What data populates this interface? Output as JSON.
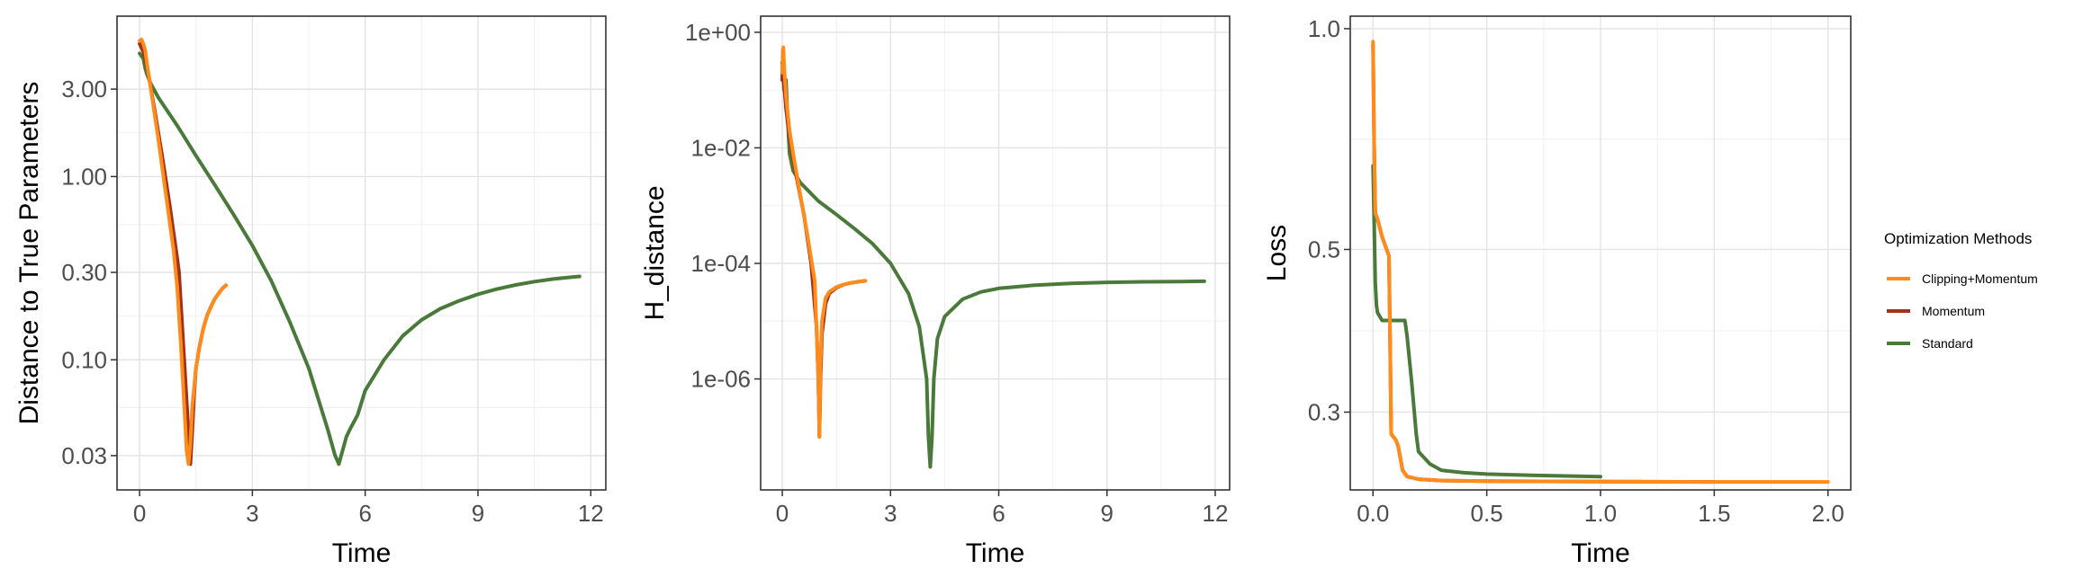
{
  "legend": {
    "title": "Optimization Methods",
    "placement": "right",
    "entries": [
      {
        "label": "Clipping+Momentum",
        "color": "#FF8C1A"
      },
      {
        "label": "Momentum",
        "color": "#A0311C"
      },
      {
        "label": "Standard",
        "color": "#4A7A3A"
      }
    ]
  },
  "chart_data": [
    {
      "type": "line",
      "xlabel": "Time",
      "ylabel": "Distance to True Parameters",
      "y_scale": "log10",
      "xlim": [
        -0.6,
        12.4
      ],
      "ylim": [
        0.0195,
        7.5
      ],
      "x_ticks": [
        0,
        3,
        6,
        9,
        12
      ],
      "x_tick_labels": [
        "0",
        "3",
        "6",
        "9",
        "12"
      ],
      "y_ticks": [
        0.03,
        0.1,
        0.3,
        1,
        3
      ],
      "y_tick_labels": [
        "0.03",
        "0.10",
        "0.30",
        "1.00",
        "3.00"
      ],
      "grid": true,
      "series": [
        {
          "name": "Clipping+Momentum",
          "color": "#FF8C1A",
          "x": [
            0.0,
            0.05,
            0.1,
            0.15,
            0.2,
            0.3,
            0.5,
            0.7,
            0.9,
            1.0,
            1.1,
            1.2,
            1.25,
            1.3,
            1.35,
            1.4,
            1.5,
            1.6,
            1.7,
            1.8,
            1.9,
            2.0,
            2.1,
            2.2,
            2.3
          ],
          "y": [
            5.5,
            5.6,
            5.3,
            4.9,
            4.1,
            3.0,
            1.6,
            0.8,
            0.4,
            0.25,
            0.12,
            0.05,
            0.032,
            0.027,
            0.035,
            0.055,
            0.09,
            0.12,
            0.15,
            0.175,
            0.195,
            0.215,
            0.23,
            0.245,
            0.255
          ]
        },
        {
          "name": "Momentum",
          "color": "#A0311C",
          "x": [
            0.0,
            0.1,
            0.2,
            0.4,
            0.6,
            0.8,
            1.0,
            1.05,
            1.1,
            1.2,
            1.3,
            1.35,
            1.4,
            1.45,
            1.5,
            1.6,
            1.7,
            1.8,
            1.9,
            2.0,
            2.1,
            2.2,
            2.3
          ],
          "y": [
            5.3,
            4.8,
            4.0,
            2.3,
            1.3,
            0.7,
            0.36,
            0.3,
            0.2,
            0.09,
            0.04,
            0.027,
            0.04,
            0.065,
            0.09,
            0.12,
            0.15,
            0.175,
            0.195,
            0.215,
            0.23,
            0.245,
            0.255
          ]
        },
        {
          "name": "Standard",
          "color": "#4A7A3A",
          "x": [
            0.0,
            0.1,
            0.15,
            0.2,
            0.3,
            0.5,
            1.0,
            1.5,
            2.0,
            2.5,
            3.0,
            3.5,
            4.0,
            4.5,
            5.0,
            5.2,
            5.3,
            5.4,
            5.5,
            5.6,
            5.8,
            6.0,
            6.5,
            7.0,
            7.5,
            8.0,
            8.5,
            9.0,
            9.5,
            10.0,
            10.5,
            11.0,
            11.5,
            11.7
          ],
          "y": [
            4.7,
            4.4,
            3.9,
            3.6,
            3.2,
            2.7,
            1.9,
            1.3,
            0.9,
            0.62,
            0.42,
            0.27,
            0.16,
            0.09,
            0.042,
            0.03,
            0.027,
            0.032,
            0.038,
            0.042,
            0.05,
            0.068,
            0.1,
            0.135,
            0.165,
            0.19,
            0.21,
            0.228,
            0.243,
            0.256,
            0.267,
            0.276,
            0.283,
            0.285
          ]
        }
      ]
    },
    {
      "type": "line",
      "xlabel": "Time",
      "ylabel": "H_distance",
      "y_scale": "log10",
      "xlim": [
        -0.6,
        12.4
      ],
      "ylim": [
        1.2e-08,
        1.9
      ],
      "x_ticks": [
        0,
        3,
        6,
        9,
        12
      ],
      "x_tick_labels": [
        "0",
        "3",
        "6",
        "9",
        "12"
      ],
      "y_ticks": [
        1e-06,
        0.0001,
        0.01,
        1
      ],
      "y_tick_labels": [
        "1e-06",
        "1e-04",
        "1e-02",
        "1e+00"
      ],
      "grid": true,
      "series": [
        {
          "name": "Clipping+Momentum",
          "color": "#FF8C1A",
          "x": [
            0.0,
            0.03,
            0.06,
            0.1,
            0.2,
            0.3,
            0.5,
            0.7,
            0.9,
            1.0,
            1.03,
            1.06,
            1.1,
            1.2,
            1.3,
            1.5,
            1.7,
            1.9,
            2.1,
            2.3
          ],
          "y": [
            0.2,
            0.55,
            0.2,
            0.08,
            0.02,
            0.008,
            0.0015,
            0.0003,
            5e-05,
            1e-06,
            1e-07,
            2e-06,
            1e-05,
            2.5e-05,
            3.2e-05,
            3.9e-05,
            4.3e-05,
            4.6e-05,
            4.8e-05,
            5e-05
          ]
        },
        {
          "name": "Momentum",
          "color": "#A0311C",
          "x": [
            0.0,
            0.02,
            0.05,
            0.1,
            0.2,
            0.4,
            0.6,
            0.8,
            0.95,
            1.0,
            1.03,
            1.06,
            1.1,
            1.2,
            1.3,
            1.5,
            1.7,
            1.9,
            2.1,
            2.3
          ],
          "y": [
            0.15,
            0.5,
            0.12,
            0.05,
            0.015,
            0.003,
            0.0007,
            0.0001,
            8e-06,
            1e-06,
            1e-07,
            1e-06,
            6e-06,
            2e-05,
            3e-05,
            3.8e-05,
            4.3e-05,
            4.6e-05,
            4.8e-05,
            5e-05
          ]
        },
        {
          "name": "Standard",
          "color": "#4A7A3A",
          "x": [
            0.0,
            0.05,
            0.1,
            0.15,
            0.2,
            0.3,
            0.5,
            1.0,
            1.5,
            2.0,
            2.5,
            3.0,
            3.5,
            3.8,
            4.0,
            4.05,
            4.1,
            4.15,
            4.2,
            4.3,
            4.5,
            5.0,
            5.5,
            6.0,
            7.0,
            8.0,
            9.0,
            10.0,
            11.0,
            11.7
          ],
          "y": [
            0.3,
            0.1,
            0.15,
            0.03,
            0.008,
            0.004,
            0.0025,
            0.0012,
            0.0007,
            0.0004,
            0.00022,
            0.0001,
            3e-05,
            8e-06,
            1e-06,
            1e-07,
            3e-08,
            1e-07,
            1e-06,
            5e-06,
            1.2e-05,
            2.4e-05,
            3.2e-05,
            3.7e-05,
            4.2e-05,
            4.5e-05,
            4.7e-05,
            4.8e-05,
            4.85e-05,
            4.9e-05
          ]
        }
      ]
    },
    {
      "type": "line",
      "xlabel": "Time",
      "ylabel": "Loss",
      "y_scale": "log10",
      "xlim": [
        -0.1,
        2.1
      ],
      "ylim": [
        0.235,
        1.04
      ],
      "x_ticks": [
        0,
        0.5,
        1,
        1.5,
        2
      ],
      "x_tick_labels": [
        "0.0",
        "0.5",
        "1.0",
        "1.5",
        "2.0"
      ],
      "y_ticks": [
        0.3,
        0.5,
        1
      ],
      "y_tick_labels": [
        "0.3",
        "0.5",
        "1.0"
      ],
      "grid": true,
      "series": [
        {
          "name": "Clipping+Momentum",
          "color": "#FF8C1A",
          "x": [
            0.0,
            0.005,
            0.01,
            0.02,
            0.04,
            0.06,
            0.07,
            0.075,
            0.08,
            0.1,
            0.11,
            0.12,
            0.13,
            0.15,
            0.2,
            0.3,
            0.5,
            1.0,
            1.5,
            2.0
          ],
          "y": [
            0.96,
            0.7,
            0.56,
            0.55,
            0.52,
            0.5,
            0.49,
            0.38,
            0.28,
            0.275,
            0.27,
            0.26,
            0.25,
            0.245,
            0.243,
            0.242,
            0.2415,
            0.2412,
            0.241,
            0.241
          ]
        },
        {
          "name": "Momentum",
          "color": "#A0311C",
          "x": [
            0.0,
            0.005,
            0.01,
            0.02,
            0.04,
            0.06,
            0.07,
            0.075,
            0.08,
            0.1,
            0.11,
            0.12,
            0.13,
            0.15,
            0.2,
            0.3,
            0.5,
            1.0,
            1.5
          ],
          "y": [
            0.95,
            0.7,
            0.56,
            0.55,
            0.52,
            0.5,
            0.49,
            0.38,
            0.28,
            0.275,
            0.27,
            0.26,
            0.25,
            0.245,
            0.243,
            0.242,
            0.2415,
            0.2412,
            0.241
          ]
        },
        {
          "name": "Standard",
          "color": "#4A7A3A",
          "x": [
            0.0,
            0.005,
            0.01,
            0.015,
            0.02,
            0.04,
            0.06,
            0.1,
            0.14,
            0.15,
            0.17,
            0.19,
            0.2,
            0.25,
            0.3,
            0.4,
            0.5,
            0.7,
            1.0
          ],
          "y": [
            0.65,
            0.55,
            0.45,
            0.42,
            0.41,
            0.4,
            0.4,
            0.4,
            0.4,
            0.38,
            0.33,
            0.28,
            0.265,
            0.255,
            0.25,
            0.248,
            0.247,
            0.246,
            0.245
          ]
        }
      ]
    }
  ]
}
